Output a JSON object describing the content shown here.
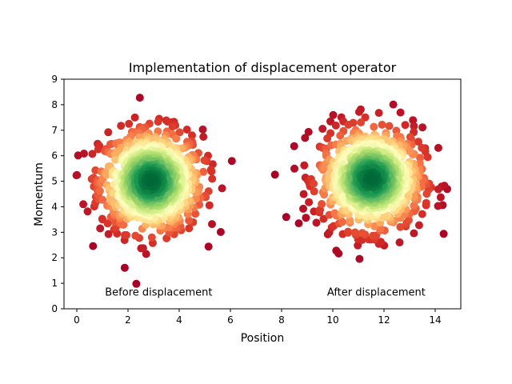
{
  "chart_data": {
    "type": "scatter",
    "title": "Implementation of displacement operator",
    "xlabel": "Position",
    "ylabel": "Momentum",
    "xlim": [
      -0.5,
      15
    ],
    "ylim": [
      0,
      9
    ],
    "xticks": [
      "0",
      "2",
      "4",
      "6",
      "8",
      "10",
      "12",
      "14"
    ],
    "yticks": [
      "0",
      "1",
      "2",
      "3",
      "4",
      "5",
      "6",
      "7",
      "8",
      "9"
    ],
    "grid": false,
    "colormap": "RdYlGn",
    "colormap_meaning": "point density",
    "clusters": [
      {
        "name": "Before displacement",
        "center": [
          2.9,
          5.0
        ],
        "spread": 1.0,
        "count": 900,
        "label_at": [
          3.2,
          0.65
        ]
      },
      {
        "name": "After displacement",
        "center": [
          11.5,
          5.1
        ],
        "spread": 1.0,
        "count": 900,
        "label_at": [
          11.7,
          0.65
        ]
      }
    ],
    "annotations": [
      "Before displacement",
      "After displacement"
    ]
  }
}
